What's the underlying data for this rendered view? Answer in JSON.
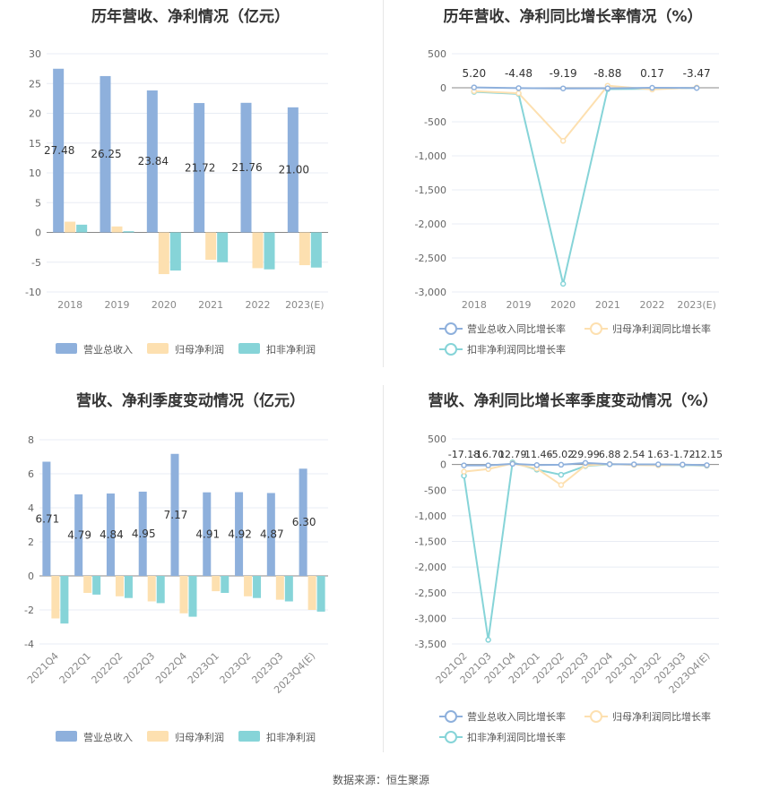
{
  "source_text": "数据来源：恒生聚源",
  "colors": {
    "revenue": "#8eb0dc",
    "net_profit": "#fde0b0",
    "deducted_profit": "#86d4d8",
    "grid": "#e8ecf4",
    "axis_text": "#666666"
  },
  "chart_data": [
    {
      "type": "bar",
      "title": "历年营收、净利情况（亿元）",
      "categories": [
        "2018",
        "2019",
        "2020",
        "2021",
        "2022",
        "2023(E)"
      ],
      "ylim": [
        -10,
        30
      ],
      "yticks": [
        -10,
        -5,
        0,
        5,
        10,
        15,
        20,
        25,
        30
      ],
      "series": [
        {
          "name": "营业总收入",
          "values": [
            27.48,
            26.25,
            23.84,
            21.72,
            21.76,
            21.0
          ],
          "labels": [
            "27.48",
            "26.25",
            "23.84",
            "21.72",
            "21.76",
            "21.00"
          ]
        },
        {
          "name": "归母净利润",
          "values": [
            1.8,
            1.0,
            -7.0,
            -4.6,
            -6.0,
            -5.5
          ]
        },
        {
          "name": "扣非净利润",
          "values": [
            1.3,
            0.2,
            -6.4,
            -5.0,
            -6.2,
            -5.9
          ]
        }
      ],
      "legend": "bottom"
    },
    {
      "type": "line",
      "title": "历年营收、净利同比增长率情况（%）",
      "categories": [
        "2018",
        "2019",
        "2020",
        "2021",
        "2022",
        "2023(E)"
      ],
      "ylim": [
        -3000,
        500
      ],
      "yticks": [
        -3000,
        -2500,
        -2000,
        -1500,
        -1000,
        -500,
        0,
        500
      ],
      "ytick_labels": [
        "-3,000",
        "-2,500",
        "-2,000",
        "-1,500",
        "-1,000",
        "-500",
        "0",
        "500"
      ],
      "series": [
        {
          "name": "营业总收入同比增长率",
          "values": [
            5.2,
            -4.48,
            -9.19,
            -8.88,
            0.17,
            -3.47
          ],
          "labels": [
            "5.20",
            "-4.48",
            "-9.19",
            "-8.88",
            "0.17",
            "-3.47"
          ]
        },
        {
          "name": "归母净利润同比增长率",
          "values": [
            -50,
            -80,
            -780,
            30,
            -25,
            5
          ]
        },
        {
          "name": "扣非净利润同比增长率",
          "values": [
            -60,
            -90,
            -2880,
            -20,
            -15,
            0
          ]
        }
      ],
      "legend": "bottom"
    },
    {
      "type": "bar",
      "title": "营收、净利季度变动情况（亿元）",
      "categories": [
        "2021Q4",
        "2022Q1",
        "2022Q2",
        "2022Q3",
        "2022Q4",
        "2023Q1",
        "2023Q2",
        "2023Q3",
        "2023Q4(E)"
      ],
      "ylim": [
        -4,
        8
      ],
      "yticks": [
        -4,
        -2,
        0,
        2,
        4,
        6,
        8
      ],
      "series": [
        {
          "name": "营业总收入",
          "values": [
            6.71,
            4.79,
            4.84,
            4.95,
            7.17,
            4.91,
            4.92,
            4.87,
            6.3
          ],
          "labels": [
            "6.71",
            "4.79",
            "4.84",
            "4.95",
            "7.17",
            "4.91",
            "4.92",
            "4.87",
            "6.30"
          ]
        },
        {
          "name": "归母净利润",
          "values": [
            -2.5,
            -1.0,
            -1.2,
            -1.5,
            -2.2,
            -0.9,
            -1.2,
            -1.4,
            -2.0
          ]
        },
        {
          "name": "扣非净利润",
          "values": [
            -2.8,
            -1.1,
            -1.3,
            -1.6,
            -2.4,
            -1.0,
            -1.3,
            -1.5,
            -2.1
          ]
        }
      ],
      "legend": "bottom"
    },
    {
      "type": "line",
      "title": "营收、净利同比增长率季度变动情况（%）",
      "categories": [
        "2021Q2",
        "2021Q3",
        "2021Q4",
        "2022Q1",
        "2022Q2",
        "2022Q3",
        "2022Q4",
        "2023Q1",
        "2023Q2",
        "2023Q3",
        "2023Q4(E)"
      ],
      "ylim": [
        -3500,
        500
      ],
      "yticks": [
        -3500,
        -3000,
        -2500,
        -2000,
        -1500,
        -1000,
        -500,
        0,
        500
      ],
      "ytick_labels": [
        "-3,500",
        "-3,000",
        "-2,500",
        "-2,000",
        "-1,500",
        "-1,000",
        "-500",
        "0",
        "500"
      ],
      "series": [
        {
          "name": "营业总收入同比增长率",
          "values": [
            -17.18,
            -16.7,
            12.79,
            -11.46,
            -5.02,
            29.99,
            6.88,
            2.54,
            1.63,
            -1.72,
            -12.15
          ],
          "labels": [
            "-17.18",
            "-16.70",
            "12.79",
            "-11.46",
            "-5.02",
            "29.99",
            "6.88",
            "2.54",
            "1.63",
            "-1.72",
            "-12.15"
          ]
        },
        {
          "name": "归母净利润同比增长率",
          "values": [
            -140,
            -90,
            20,
            -80,
            -400,
            -20,
            10,
            -10,
            -15,
            -5,
            -20
          ]
        },
        {
          "name": "扣非净利润同比增长率",
          "values": [
            -220,
            -3420,
            40,
            -100,
            -200,
            -30,
            5,
            0,
            -10,
            -10,
            -25
          ]
        }
      ],
      "legend": "bottom"
    }
  ]
}
